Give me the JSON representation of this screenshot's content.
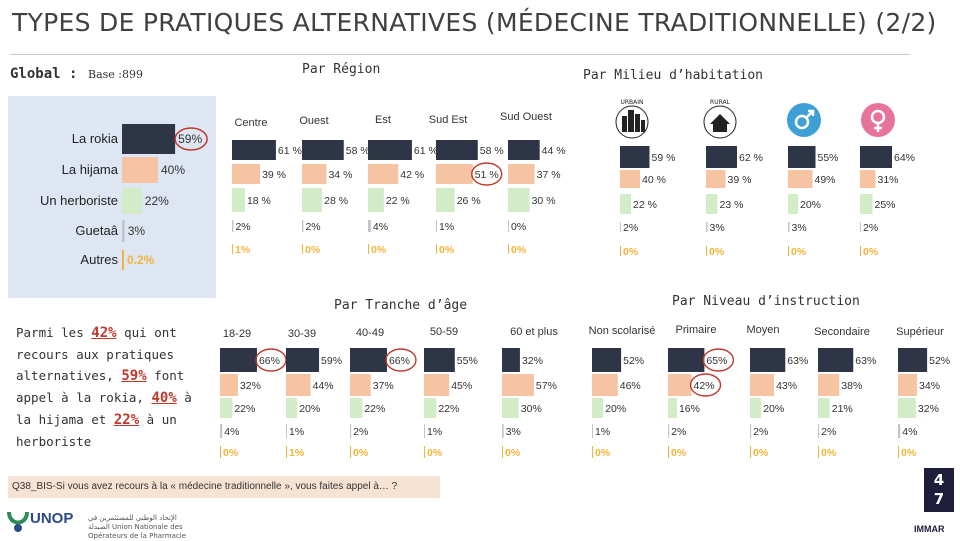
{
  "page": {
    "title": "TYPES DE PRATIQUES ALTERNATIVES (MÉDECINE TRADITIONNELLE) (2/2)",
    "global_label": "Global :",
    "base_label": "Base :899",
    "region_header": "Par Région",
    "milieu_header": "Par Milieu d’habitation",
    "age_header": "Par Tranche d’âge",
    "instruction_header": "Par Niveau d’instruction",
    "question": "Q38_BIS-Si vous avez recours à la « médecine traditionnelle », vous faites appel à… ?",
    "page_number_top": "4",
    "page_number_bottom": "7",
    "logo_name": "UNOP",
    "logo_tagline": "الإتحاد الوطني للمستثمرين في الصيدلة Union Nationale des Opérateurs de la Pharmacie",
    "footer_brand": "IMMAR"
  },
  "summary": {
    "prefix": "Parmi les ",
    "v1": "42%",
    "mid1": " qui ont recours aux pratiques alternatives, ",
    "v2": "59%",
    "mid2": " font appel à la rokia, ",
    "v3": "40%",
    "mid3": " à la hijama et ",
    "v4": "22%",
    "suffix": " à un herboriste"
  },
  "colors": {
    "series": [
      "#2e3547",
      "#f6c4a2",
      "#d2ecc8",
      "#c2c6cc",
      "#f2b43c"
    ],
    "highlight": "#c0392b",
    "panel": "#dfe6f3",
    "title_rule": "#c9c9c9"
  },
  "chart_data": [
    {
      "id": "global",
      "type": "bar",
      "orientation": "horizontal",
      "categories": [
        "La rokia",
        "La hijama",
        "Un herboriste",
        "Guetaâ",
        "Autres"
      ],
      "values": [
        59,
        40,
        22,
        3,
        0.2
      ],
      "labels": [
        "59%",
        "40%",
        "22%",
        "3%",
        "0.2%"
      ],
      "circled": [
        0
      ]
    },
    {
      "id": "region",
      "type": "bar",
      "orientation": "horizontal",
      "groups": [
        "Centre",
        "Ouest",
        "Est",
        "Sud Est",
        "Sud Ouest"
      ],
      "series_names": [
        "La rokia",
        "La hijama",
        "Un herboriste",
        "Guetaâ",
        "Autres"
      ],
      "values": [
        [
          61,
          39,
          18,
          2,
          1
        ],
        [
          58,
          34,
          28,
          2,
          0
        ],
        [
          61,
          42,
          22,
          4,
          0
        ],
        [
          58,
          51,
          26,
          1,
          0
        ],
        [
          44,
          37,
          30,
          0,
          0
        ]
      ],
      "labels": [
        [
          "61 %",
          "39 %",
          "18 %",
          "2%",
          "1%"
        ],
        [
          "58 %",
          "34 %",
          "28 %",
          "2%",
          "0%"
        ],
        [
          "61 %",
          "42 %",
          "22 %",
          "4%",
          "0%"
        ],
        [
          "58 %",
          "51 %",
          "26 %",
          "1%",
          "0%"
        ],
        [
          "44 %",
          "37 %",
          "30 %",
          "0%",
          "0%"
        ]
      ],
      "circled": [
        [
          3,
          1
        ]
      ]
    },
    {
      "id": "milieu",
      "type": "bar",
      "orientation": "horizontal",
      "groups": [
        "Urbain",
        "Rural",
        "Homme",
        "Femme"
      ],
      "series_names": [
        "La rokia",
        "La hijama",
        "Un herboriste",
        "Guetaâ",
        "Autres"
      ],
      "values": [
        [
          59,
          40,
          22,
          2,
          0
        ],
        [
          62,
          39,
          23,
          3,
          0
        ],
        [
          55,
          49,
          20,
          3,
          0
        ],
        [
          64,
          31,
          25,
          2,
          0
        ]
      ],
      "labels": [
        [
          "59 %",
          "40 %",
          "22 %",
          "2%",
          "0%"
        ],
        [
          "62 %",
          "39 %",
          "23 %",
          "3%",
          "0%"
        ],
        [
          "55%",
          "49%",
          "20%",
          "3%",
          "0%"
        ],
        [
          "64%",
          "31%",
          "25%",
          "2%",
          "0%"
        ]
      ],
      "circled": []
    },
    {
      "id": "age",
      "type": "bar",
      "orientation": "horizontal",
      "groups": [
        "18-29",
        "30-39",
        "40-49",
        "50-59",
        "60 et plus"
      ],
      "series_names": [
        "La rokia",
        "La hijama",
        "Un herboriste",
        "Guetaâ",
        "Autres"
      ],
      "values": [
        [
          66,
          32,
          22,
          4,
          0
        ],
        [
          59,
          44,
          20,
          1,
          1
        ],
        [
          66,
          37,
          22,
          2,
          0
        ],
        [
          55,
          45,
          22,
          1,
          0
        ],
        [
          32,
          57,
          30,
          3,
          0
        ]
      ],
      "labels": [
        [
          "66%",
          "32%",
          "22%",
          "4%",
          "0%"
        ],
        [
          "59%",
          "44%",
          "20%",
          "1%",
          "1%"
        ],
        [
          "66%",
          "37%",
          "22%",
          "2%",
          "0%"
        ],
        [
          "55%",
          "45%",
          "22%",
          "1%",
          "0%"
        ],
        [
          "32%",
          "57%",
          "30%",
          "3%",
          "0%"
        ]
      ],
      "circled": [
        [
          0,
          0
        ],
        [
          2,
          0
        ]
      ]
    },
    {
      "id": "instruction",
      "type": "bar",
      "orientation": "horizontal",
      "groups": [
        "Non scolarisé",
        "Primaire",
        "Moyen",
        "Secondaire",
        "Supérieur"
      ],
      "series_names": [
        "La rokia",
        "La hijama",
        "Un herboriste",
        "Guetaâ",
        "Autres"
      ],
      "values": [
        [
          52,
          46,
          20,
          1,
          0
        ],
        [
          65,
          42,
          16,
          2,
          0
        ],
        [
          63,
          43,
          20,
          2,
          0
        ],
        [
          63,
          38,
          21,
          2,
          0
        ],
        [
          52,
          34,
          32,
          4,
          0
        ]
      ],
      "labels": [
        [
          "52%",
          "46%",
          "20%",
          "1%",
          "0%"
        ],
        [
          "65%",
          "42%",
          "16%",
          "2%",
          "0%"
        ],
        [
          "63%",
          "43%",
          "20%",
          "2%",
          "0%"
        ],
        [
          "63%",
          "38%",
          "21%",
          "2%",
          "0%"
        ],
        [
          "52%",
          "34%",
          "32%",
          "4%",
          "0%"
        ]
      ],
      "circled": [
        [
          1,
          0
        ],
        [
          1,
          1
        ]
      ]
    }
  ]
}
